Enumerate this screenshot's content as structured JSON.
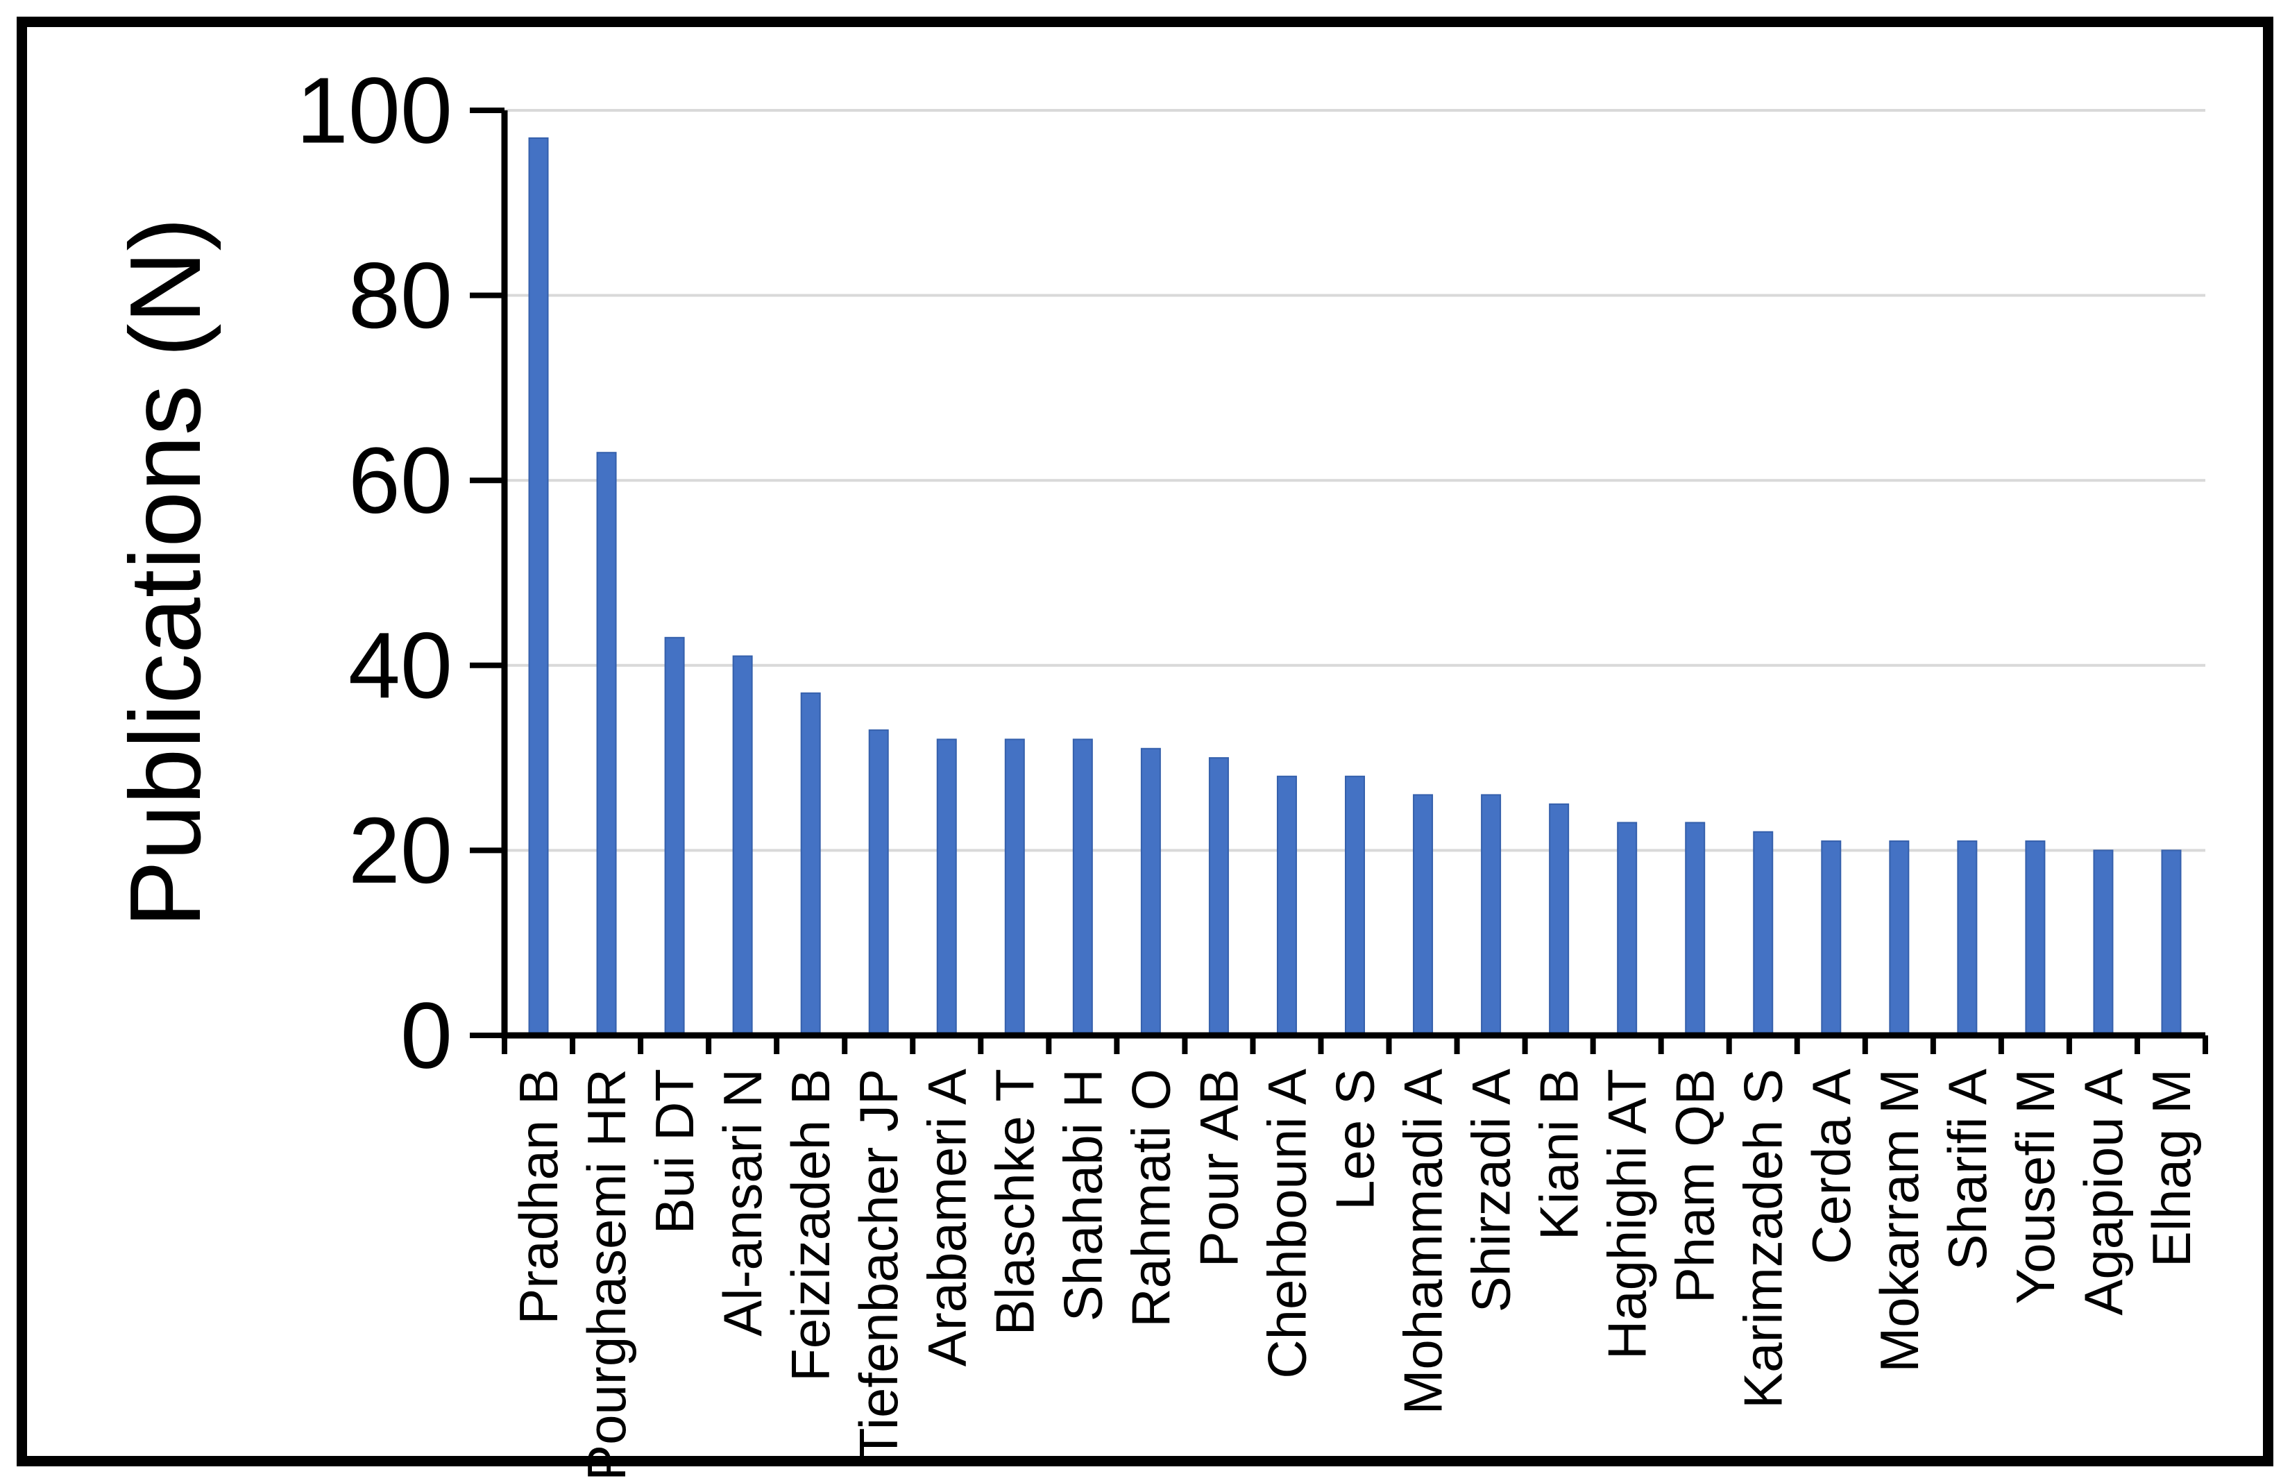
{
  "figure": {
    "background": "#ffffff",
    "border_color": "#000000"
  },
  "chart_data": {
    "type": "bar",
    "title": "",
    "xlabel": "",
    "ylabel": "Publications (N)",
    "categories": [
      "Pradhan B",
      "Pourghasemi HR",
      "Bui DT",
      "Al-ansari N",
      "Feizizadeh B",
      "Tiefenbacher JP",
      "Arabameri A",
      "Blaschke T",
      "Shahabi H",
      "Rahmati O",
      "Pour AB",
      "Chehbouni A",
      "Lee S",
      "Mohammadi A",
      "Shirzadi A",
      "Kiani B",
      "Haghighi AT",
      "Pham QB",
      "Karimzadeh S",
      "Cerda A",
      "Mokarram M",
      "Sharifi A",
      "Yousefi M",
      "Agapiou A",
      "Elhag M"
    ],
    "values": [
      97,
      63,
      43,
      41,
      37,
      33,
      32,
      32,
      32,
      31,
      30,
      28,
      28,
      26,
      26,
      25,
      23,
      23,
      22,
      21,
      21,
      21,
      21,
      20,
      20
    ],
    "ylim": [
      0,
      100
    ],
    "yticks": [
      0,
      20,
      40,
      60,
      80,
      100
    ],
    "grid": "horizontal",
    "legend_position": "none",
    "colors": {
      "bar": "#4472C4",
      "bar_edge": "#3560AC",
      "gridline": "#D9D9D9",
      "axis": "#000000",
      "text": "#000000"
    }
  }
}
